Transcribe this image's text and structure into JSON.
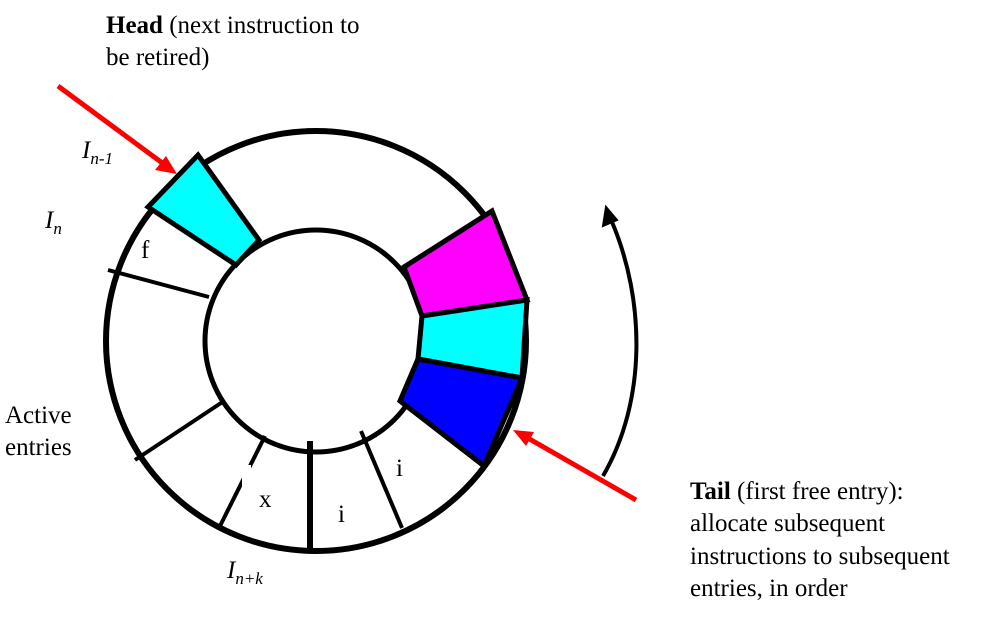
{
  "head": {
    "bold": "Head",
    "rest1": " (next instruction to",
    "line2": "be retired)"
  },
  "tail": {
    "bold": "Tail",
    "rest1": " (first free entry):",
    "line2": "allocate subsequent",
    "line3": "instructions to subsequent",
    "line4": "entries, in order"
  },
  "active": {
    "line1": "Active",
    "line2": "entries"
  },
  "labels": {
    "in_minus_1": {
      "base": "I",
      "sub": "n-1"
    },
    "in": {
      "base": "I",
      "sub": "n"
    },
    "in_plus_k": {
      "base": "I",
      "sub": "n+k"
    }
  },
  "entries": {
    "f": "f",
    "x": "x",
    "i_bottom": "i",
    "i_right": "i"
  },
  "colors": {
    "cyan": "#00FFFF",
    "magenta": "#FF00FF",
    "blue": "#0000FF",
    "arrow_red": "#FF0000",
    "stroke": "#000000"
  }
}
